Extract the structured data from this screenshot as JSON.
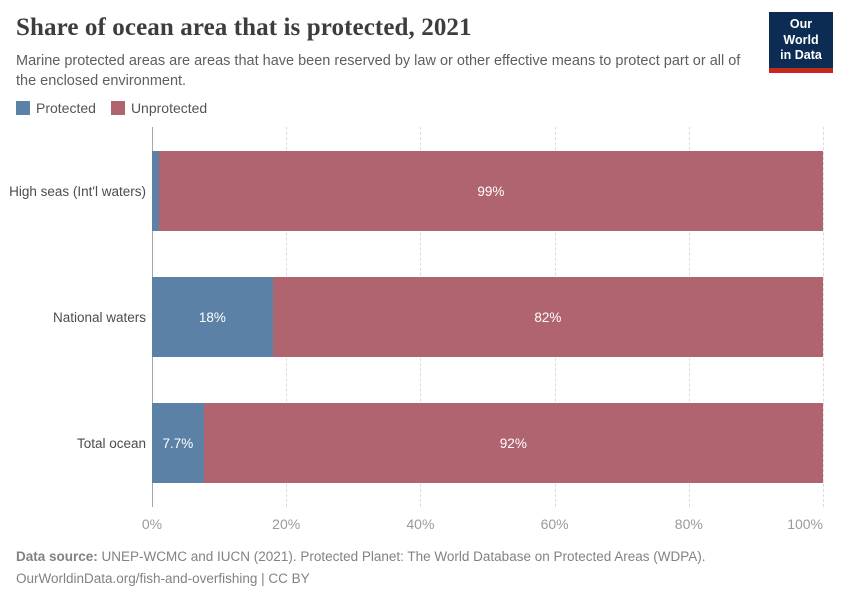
{
  "header": {
    "title": "Share of ocean area that is protected, 2021",
    "subtitle": "Marine protected areas are areas that have been reserved by law or other effective means to protect part or all of the enclosed environment.",
    "logo": {
      "line1": "Our World",
      "line2": "in Data"
    }
  },
  "legend": {
    "items": [
      {
        "label": "Protected",
        "color": "#5b82a6"
      },
      {
        "label": "Unprotected",
        "color": "#b0646f"
      }
    ]
  },
  "chart_data": {
    "type": "bar",
    "orientation": "horizontal",
    "stacked": true,
    "title": "Share of ocean area that is protected, 2021",
    "categories": [
      "High seas (Int'l waters)",
      "National waters",
      "Total ocean"
    ],
    "series": [
      {
        "name": "Protected",
        "color": "#5b82a6",
        "values": [
          1,
          18,
          7.7
        ],
        "labels": [
          "",
          "18%",
          "7.7%"
        ]
      },
      {
        "name": "Unprotected",
        "color": "#b0646f",
        "values": [
          99,
          82,
          92.3
        ],
        "labels": [
          "99%",
          "82%",
          "92%"
        ]
      }
    ],
    "xlim": [
      0,
      100
    ],
    "xticks": [
      {
        "value": 0,
        "label": "0%"
      },
      {
        "value": 20,
        "label": "20%"
      },
      {
        "value": 40,
        "label": "40%"
      },
      {
        "value": 60,
        "label": "60%"
      },
      {
        "value": 80,
        "label": "80%"
      },
      {
        "value": 100,
        "label": "100%"
      }
    ],
    "grid": true,
    "legend_position": "top-left"
  },
  "footer": {
    "source_label": "Data source:",
    "source_text": " UNEP-WCMC and IUCN (2021). Protected Planet: The World Database on Protected Areas (WDPA).",
    "line2": "OurWorldinData.org/fish-and-overfishing | CC BY"
  },
  "colors": {
    "protected": "#5b82a6",
    "unprotected": "#b0646f",
    "axis": "#a6a6a6",
    "gridline": "#dcdcdc",
    "logo_navy": "#0d2c53",
    "logo_red": "#c5281f"
  }
}
